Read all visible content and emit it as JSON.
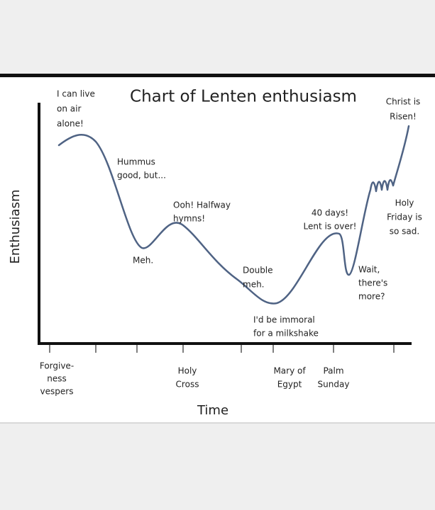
{
  "title": "Chart of Lenten enthusiasm",
  "y_axis_label": "Enthusiasm",
  "x_axis_label": "Time",
  "annotations": [
    [
      "I can live",
      "on air",
      "alone!"
    ],
    [
      "Hummus",
      "good, but..."
    ],
    [
      "Meh."
    ],
    [
      "Ooh! Halfway",
      "hymns!"
    ],
    [
      "Double",
      "meh."
    ],
    [
      "I'd be immoral",
      "for a milkshake"
    ],
    [
      "40 days!",
      "Lent is over!"
    ],
    [
      "Wait,",
      "there's",
      "more?"
    ],
    [
      "Holy",
      "Friday is",
      "so sad."
    ],
    [
      "Christ is",
      "Risen!"
    ]
  ],
  "x_labels": [
    [
      "Forgive-",
      "ness",
      "vespers"
    ],
    [
      "Holy",
      "Cross"
    ],
    [
      "Mary of",
      "Egypt"
    ],
    [
      "Palm",
      "Sunday"
    ]
  ]
}
